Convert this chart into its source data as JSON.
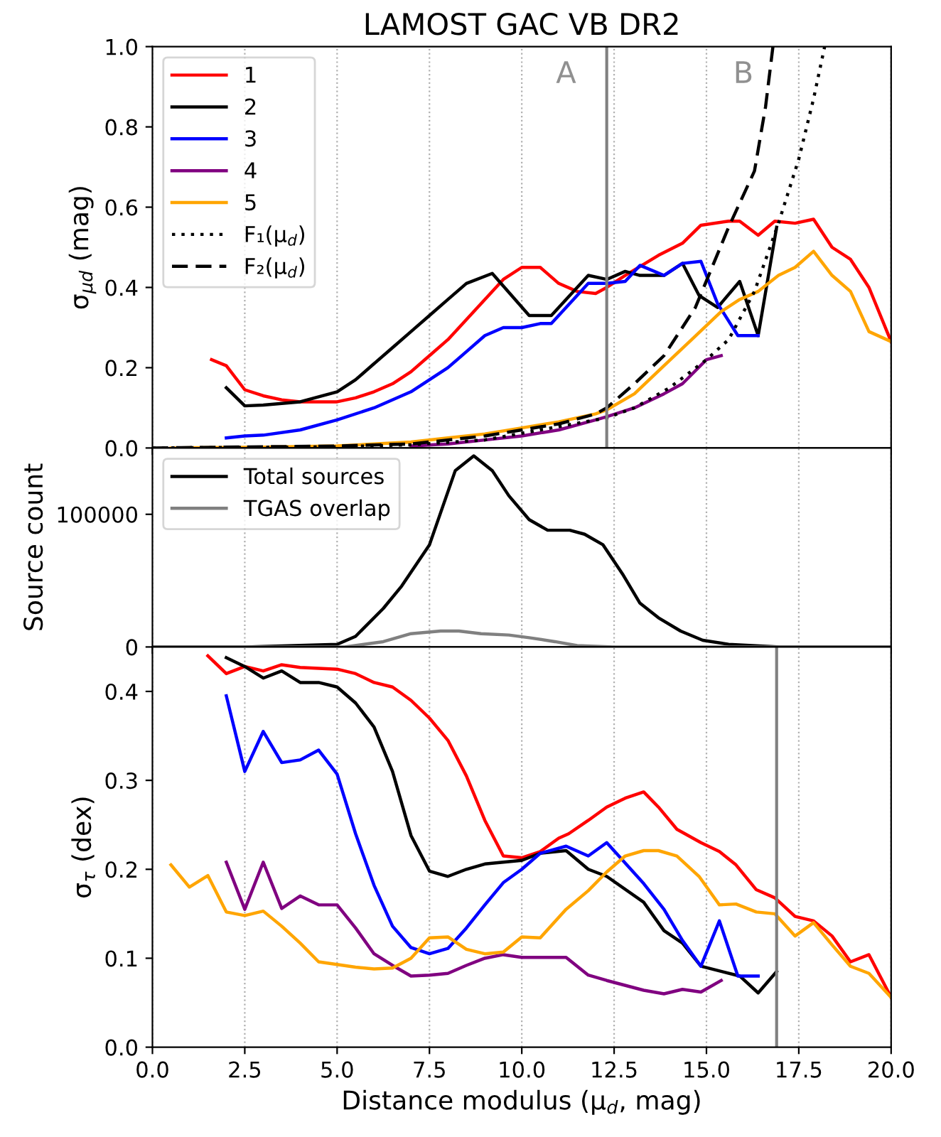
{
  "chart_data": [
    {
      "type": "line",
      "title": "LAMOST GAC VB DR2",
      "ylabel": "σ$_{μd}$ (mag)",
      "xlim": [
        0,
        20
      ],
      "ylim": [
        0,
        1.0
      ],
      "xticks": [
        {
          "value": 0,
          "label": null
        },
        {
          "value": 2.5,
          "label": null
        },
        {
          "value": 5,
          "label": null
        },
        {
          "value": 7.5,
          "label": null
        },
        {
          "value": 10,
          "label": null
        },
        {
          "value": 12.5,
          "label": null
        },
        {
          "value": 15,
          "label": null
        },
        {
          "value": 17.5,
          "label": null
        },
        {
          "value": 20,
          "label": null
        }
      ],
      "yticks": [
        {
          "value": 0,
          "label": "0.0"
        },
        {
          "value": 0.2,
          "label": "0.2"
        },
        {
          "value": 0.4,
          "label": "0.4"
        },
        {
          "value": 0.6,
          "label": "0.6"
        },
        {
          "value": 0.8,
          "label": "0.8"
        },
        {
          "value": 1.0,
          "label": "1.0"
        }
      ],
      "tick_labels": "y",
      "grid": "x",
      "legend": "top left",
      "annotations": [
        "A",
        "B"
      ],
      "ref_lines": [
        {
          "axis": "x",
          "value": 12.3,
          "color": "#808080"
        }
      ],
      "series": [
        {
          "name": "1",
          "color": "#ff0000",
          "x": [
            1.6,
            2.0,
            2.5,
            3.0,
            3.5,
            4.0,
            5.0,
            5.5,
            6.0,
            6.5,
            7.0,
            7.5,
            8.0,
            8.5,
            9.0,
            9.5,
            10.0,
            10.5,
            11.0,
            11.5,
            12.0,
            12.3,
            12.8,
            13.7,
            14.35,
            14.85,
            15.6,
            15.9,
            16.4,
            16.85,
            17.4,
            17.9,
            18.4,
            18.9,
            19.4,
            20.0
          ],
          "values": [
            0.22,
            0.205,
            0.145,
            0.13,
            0.12,
            0.115,
            0.115,
            0.125,
            0.14,
            0.16,
            0.19,
            0.23,
            0.27,
            0.32,
            0.37,
            0.42,
            0.45,
            0.45,
            0.41,
            0.39,
            0.385,
            0.4,
            0.43,
            0.48,
            0.51,
            0.555,
            0.565,
            0.565,
            0.53,
            0.565,
            0.56,
            0.57,
            0.5,
            0.47,
            0.4,
            0.265
          ]
        },
        {
          "name": "2",
          "color": "#000000",
          "x": [
            2.0,
            2.5,
            3.0,
            4.0,
            5.0,
            5.5,
            6.0,
            6.5,
            7.0,
            7.5,
            8.0,
            8.5,
            9.2,
            10.2,
            10.8,
            11.8,
            12.3,
            12.8,
            13.2,
            13.85,
            14.35,
            14.8,
            15.3,
            15.9,
            16.4,
            16.9
          ],
          "values": [
            0.15,
            0.105,
            0.107,
            0.115,
            0.14,
            0.17,
            0.21,
            0.25,
            0.29,
            0.33,
            0.37,
            0.41,
            0.435,
            0.33,
            0.33,
            0.43,
            0.42,
            0.44,
            0.43,
            0.43,
            0.46,
            0.38,
            0.35,
            0.415,
            0.28,
            0.55
          ]
        },
        {
          "name": "3",
          "color": "#0000ff",
          "x": [
            2.0,
            2.5,
            3.0,
            4.0,
            5.0,
            6.0,
            7.0,
            7.5,
            8.0,
            8.5,
            9.0,
            9.5,
            10.0,
            10.5,
            10.8,
            11.8,
            12.3,
            12.8,
            13.2,
            13.85,
            14.35,
            14.85,
            15.3,
            15.85,
            16.4
          ],
          "values": [
            0.025,
            0.03,
            0.032,
            0.045,
            0.07,
            0.1,
            0.14,
            0.17,
            0.2,
            0.24,
            0.28,
            0.3,
            0.3,
            0.31,
            0.31,
            0.41,
            0.41,
            0.415,
            0.455,
            0.43,
            0.46,
            0.465,
            0.36,
            0.28,
            0.28
          ]
        },
        {
          "name": "4",
          "color": "#800080",
          "x": [
            7.0,
            8.0,
            9.0,
            10.0,
            11.0,
            12.0,
            12.3,
            13.05,
            13.85,
            14.35,
            15.0,
            15.4
          ],
          "values": [
            0.005,
            0.01,
            0.02,
            0.03,
            0.045,
            0.07,
            0.078,
            0.1,
            0.135,
            0.16,
            0.22,
            0.23
          ]
        },
        {
          "name": "5",
          "color": "#ffa500",
          "x": [
            0.5,
            3.0,
            5.0,
            6.0,
            7.0,
            8.0,
            9.0,
            10.0,
            11.0,
            12.0,
            12.3,
            13.05,
            13.85,
            14.6,
            15.4,
            15.9,
            16.4,
            16.95,
            17.4,
            17.9,
            18.4,
            18.9,
            19.4,
            20.0
          ],
          "values": [
            0.0,
            0.002,
            0.005,
            0.01,
            0.015,
            0.025,
            0.035,
            0.05,
            0.065,
            0.085,
            0.095,
            0.135,
            0.205,
            0.27,
            0.34,
            0.37,
            0.39,
            0.43,
            0.45,
            0.49,
            0.43,
            0.39,
            0.29,
            0.265
          ]
        },
        {
          "name": "F₁(μ$_{d}$)",
          "color": "#000000",
          "line_style": "dotted",
          "x": [
            0.0,
            5.0,
            7.0,
            9.0,
            12.3,
            13.05,
            14.0,
            15.0,
            15.6,
            16.3,
            16.95,
            17.5,
            17.9,
            18.2
          ],
          "values": [
            0.0,
            0.003,
            0.008,
            0.02,
            0.075,
            0.1,
            0.15,
            0.22,
            0.27,
            0.39,
            0.56,
            0.72,
            0.87,
            1.0
          ]
        },
        {
          "name": "F₂(μ$_{d}$)",
          "color": "#000000",
          "line_style": "dashed",
          "x": [
            0.0,
            5.0,
            7.0,
            8.0,
            9.0,
            10.0,
            11.0,
            12.0,
            12.3,
            13.05,
            13.85,
            14.7,
            15.6,
            16.3,
            16.6,
            16.8
          ],
          "values": [
            0.0,
            0.005,
            0.01,
            0.02,
            0.03,
            0.045,
            0.06,
            0.085,
            0.1,
            0.16,
            0.23,
            0.35,
            0.55,
            0.69,
            0.85,
            1.0
          ]
        }
      ]
    },
    {
      "type": "line",
      "ylabel": "Source count",
      "xlim": [
        0,
        20
      ],
      "ylim": [
        0,
        150000
      ],
      "xticks": [
        {
          "value": 0,
          "label": null
        },
        {
          "value": 2.5,
          "label": null
        },
        {
          "value": 5,
          "label": null
        },
        {
          "value": 7.5,
          "label": null
        },
        {
          "value": 10,
          "label": null
        },
        {
          "value": 12.5,
          "label": null
        },
        {
          "value": 15,
          "label": null
        },
        {
          "value": 17.5,
          "label": null
        },
        {
          "value": 20,
          "label": null
        }
      ],
      "yticks": [
        0,
        100000
      ],
      "tick_labels": "y",
      "grid": "x",
      "legend": "top left",
      "series": [
        {
          "name": "Total sources",
          "color": "#000000",
          "x": [
            0.0,
            2.5,
            5.0,
            5.5,
            6.25,
            6.75,
            7.5,
            8.2,
            8.7,
            9.2,
            9.65,
            10.2,
            10.7,
            11.3,
            11.7,
            12.2,
            12.75,
            13.2,
            13.7,
            14.3,
            14.9,
            15.6,
            17.0,
            20.0
          ],
          "values": [
            0,
            0,
            2000,
            8000,
            29000,
            46000,
            77000,
            133000,
            144000,
            133000,
            114000,
            96000,
            88000,
            88000,
            85000,
            77000,
            54000,
            33000,
            22000,
            12000,
            5000,
            2000,
            0,
            0
          ]
        },
        {
          "name": "TGAS overlap",
          "color": "#808080",
          "x": [
            0.0,
            5.2,
            6.25,
            7.0,
            7.8,
            8.3,
            8.9,
            9.65,
            10.2,
            10.9,
            11.5,
            12.5,
            20.0
          ],
          "values": [
            0,
            0,
            4000,
            10000,
            12000,
            12000,
            10000,
            9000,
            7000,
            4000,
            1000,
            0,
            0
          ]
        }
      ]
    },
    {
      "type": "line",
      "xlabel": "Distance modulus (μ$_{d}$, mag)",
      "ylabel": "σ$_{τ}$ (dex)",
      "xlim": [
        0,
        20
      ],
      "ylim": [
        0,
        0.45
      ],
      "xticks": [
        {
          "value": 0,
          "label": "0.0"
        },
        {
          "value": 2.5,
          "label": "2.5"
        },
        {
          "value": 5,
          "label": "5.0"
        },
        {
          "value": 7.5,
          "label": "7.5"
        },
        {
          "value": 10,
          "label": "10.0"
        },
        {
          "value": 12.5,
          "label": "12.5"
        },
        {
          "value": 15,
          "label": "15.0"
        },
        {
          "value": 17.5,
          "label": "17.5"
        },
        {
          "value": 20,
          "label": "20.0"
        }
      ],
      "yticks": [
        {
          "value": 0,
          "label": "0.0"
        },
        {
          "value": 0.1,
          "label": "0.1"
        },
        {
          "value": 0.2,
          "label": "0.2"
        },
        {
          "value": 0.3,
          "label": "0.3"
        },
        {
          "value": 0.4,
          "label": "0.4"
        }
      ],
      "grid": "x",
      "ref_lines": [
        {
          "axis": "x",
          "value": 16.9,
          "color": "#808080"
        }
      ],
      "series": [
        {
          "color": "#ff0000",
          "x": [
            1.5,
            2.0,
            2.5,
            3.0,
            3.5,
            4.0,
            5.0,
            5.5,
            6.0,
            6.5,
            7.0,
            7.5,
            8.0,
            8.5,
            9.0,
            9.5,
            10.0,
            10.5,
            11.0,
            11.27,
            11.8,
            12.3,
            12.8,
            13.3,
            13.7,
            14.2,
            14.85,
            15.35,
            15.8,
            16.35,
            16.85,
            17.4,
            17.9,
            18.4,
            18.9,
            19.4,
            20.0
          ],
          "values": [
            0.44,
            0.42,
            0.428,
            0.423,
            0.43,
            0.427,
            0.425,
            0.42,
            0.41,
            0.405,
            0.39,
            0.37,
            0.345,
            0.305,
            0.255,
            0.215,
            0.213,
            0.22,
            0.235,
            0.24,
            0.255,
            0.27,
            0.28,
            0.287,
            0.27,
            0.245,
            0.23,
            0.22,
            0.205,
            0.177,
            0.168,
            0.147,
            0.142,
            0.125,
            0.096,
            0.104,
            0.056
          ]
        },
        {
          "color": "#000000",
          "x": [
            2.0,
            2.5,
            3.0,
            3.5,
            4.0,
            4.5,
            5.0,
            5.5,
            6.0,
            6.5,
            7.0,
            7.5,
            8.0,
            8.5,
            9.0,
            9.5,
            10.0,
            10.5,
            11.2,
            11.8,
            12.3,
            13.3,
            13.85,
            14.35,
            14.85,
            15.9,
            16.4,
            16.9
          ],
          "values": [
            0.438,
            0.428,
            0.415,
            0.423,
            0.41,
            0.41,
            0.405,
            0.387,
            0.36,
            0.31,
            0.238,
            0.198,
            0.192,
            0.2,
            0.206,
            0.208,
            0.21,
            0.218,
            0.221,
            0.2,
            0.192,
            0.163,
            0.131,
            0.117,
            0.091,
            0.08,
            0.061,
            0.085
          ]
        },
        {
          "color": "#0000ff",
          "x": [
            2.0,
            2.5,
            3.0,
            3.5,
            4.0,
            4.5,
            5.0,
            5.5,
            6.0,
            6.5,
            7.0,
            7.5,
            8.0,
            8.5,
            9.0,
            9.5,
            10.0,
            10.5,
            11.2,
            11.8,
            12.3,
            13.3,
            13.85,
            14.35,
            14.85,
            15.35,
            15.85,
            16.4
          ],
          "values": [
            0.395,
            0.31,
            0.355,
            0.32,
            0.323,
            0.334,
            0.307,
            0.24,
            0.182,
            0.136,
            0.112,
            0.105,
            0.111,
            0.134,
            0.16,
            0.185,
            0.2,
            0.218,
            0.226,
            0.215,
            0.23,
            0.184,
            0.155,
            0.12,
            0.091,
            0.142,
            0.08,
            0.08
          ]
        },
        {
          "color": "#800080",
          "x": [
            2.0,
            2.5,
            3.0,
            3.5,
            4.0,
            4.5,
            5.0,
            5.5,
            6.0,
            6.5,
            7.0,
            7.5,
            8.0,
            8.5,
            9.0,
            9.5,
            10.0,
            11.2,
            11.8,
            12.3,
            13.3,
            13.85,
            14.35,
            14.85,
            15.4
          ],
          "values": [
            0.208,
            0.155,
            0.208,
            0.156,
            0.17,
            0.16,
            0.16,
            0.134,
            0.105,
            0.092,
            0.08,
            0.081,
            0.083,
            0.092,
            0.1,
            0.104,
            0.101,
            0.101,
            0.081,
            0.075,
            0.064,
            0.06,
            0.065,
            0.062,
            0.075
          ]
        },
        {
          "color": "#ffa500",
          "x": [
            0.5,
            1.0,
            1.5,
            2.0,
            2.5,
            3.0,
            3.5,
            4.0,
            4.5,
            5.0,
            5.5,
            6.0,
            6.5,
            7.0,
            7.5,
            8.0,
            8.5,
            9.0,
            9.5,
            10.0,
            10.5,
            11.2,
            11.8,
            12.3,
            12.8,
            13.3,
            13.7,
            14.2,
            14.8,
            15.35,
            15.8,
            16.35,
            16.85,
            17.4,
            17.9,
            18.4,
            18.9,
            19.4,
            20.0
          ],
          "values": [
            0.205,
            0.18,
            0.193,
            0.152,
            0.148,
            0.153,
            0.136,
            0.117,
            0.096,
            0.093,
            0.09,
            0.088,
            0.089,
            0.1,
            0.123,
            0.124,
            0.11,
            0.105,
            0.107,
            0.124,
            0.123,
            0.155,
            0.176,
            0.197,
            0.215,
            0.221,
            0.221,
            0.215,
            0.192,
            0.16,
            0.161,
            0.152,
            0.15,
            0.125,
            0.14,
            0.115,
            0.091,
            0.083,
            0.056
          ]
        }
      ]
    }
  ]
}
